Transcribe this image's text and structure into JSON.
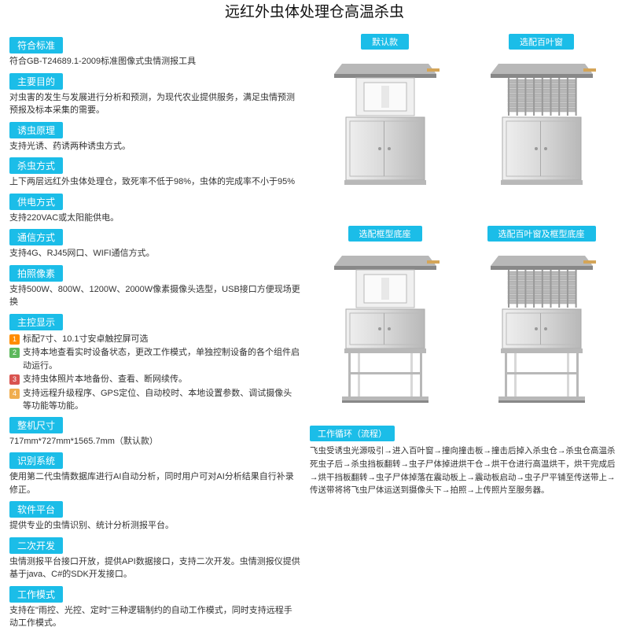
{
  "title": "远红外虫体处理仓高温杀虫",
  "sections": [
    {
      "title": "符合标准",
      "body": "符合GB-T24689.1-2009标准图像式虫情测报工具"
    },
    {
      "title": "主要目的",
      "body": "对虫害的发生与发展进行分析和预测，为现代农业提供服务，满足虫情预测预报及标本采集的需要。"
    },
    {
      "title": "诱虫原理",
      "body": "支持光诱、药诱两种诱虫方式。"
    },
    {
      "title": "杀虫方式",
      "body": "上下两层远红外虫体处理仓，致死率不低于98%，虫体的完成率不小于95%"
    },
    {
      "title": "供电方式",
      "body": "支持220VAC或太阳能供电。"
    },
    {
      "title": "通信方式",
      "body": "支持4G、RJ45网口、WIFI通信方式。"
    },
    {
      "title": "拍照像素",
      "body": "支持500W、800W、1200W、2000W像素摄像头选型，USB接口方便现场更换"
    }
  ],
  "mainDisplay": {
    "title": "主控显示",
    "items": [
      "标配7寸、10.1寸安卓触控屏可选",
      "支持本地查看实时设备状态，更改工作模式，单独控制设备的各个组件启动运行。",
      "支持虫体照片本地备份、查看、断网续传。",
      "支持远程升级程序、GPS定位、自动校时、本地设置参数、调试摄像头等功能等功能。"
    ]
  },
  "sections2": [
    {
      "title": "整机尺寸",
      "body": "717mm*727mm*1565.7mm（默认款）"
    },
    {
      "title": "识别系统",
      "body": "使用第二代虫情数据库进行AI自动分析，同时用户可对AI分析结果自行补录修正。"
    },
    {
      "title": "软件平台",
      "body": "提供专业的虫情识别、统计分析测报平台。"
    },
    {
      "title": "二次开发",
      "body": "虫情测报平台接口开放，提供API数据接口，支持二次开发。虫情测报仪提供基于java、C#的SDK开发接口。"
    },
    {
      "title": "工作模式",
      "body": "支持在\"雨控、光控、定时\"三种逻辑制约的自动工作模式，同时支持远程手动工作模式。"
    }
  ],
  "variants": [
    "默认款",
    "选配百叶窗",
    "选配框型底座",
    "选配百叶窗及框型底座"
  ],
  "workflow": {
    "title": "工作循环（流程）",
    "body": "飞虫受诱虫光源吸引→进入百叶窗→撞向撞击板→撞击后掉入杀虫仓→杀虫仓高温杀死虫子后→杀虫挡板翻转→虫子尸体掉进烘干仓→烘干仓进行高温烘干，烘干完成后→烘干挡板翻转→虫子尸体掉落在震动板上→震动板启动→虫子尸平铺至传送带上→传送带将将飞虫尸体运送到摄像头下→拍照→上传照片至服务器。"
  },
  "colors": {
    "accent": "#1bbde8",
    "metal1": "#d8d8d8",
    "metal2": "#b8b8b8",
    "metal3": "#f0f0f0",
    "dark": "#888"
  }
}
